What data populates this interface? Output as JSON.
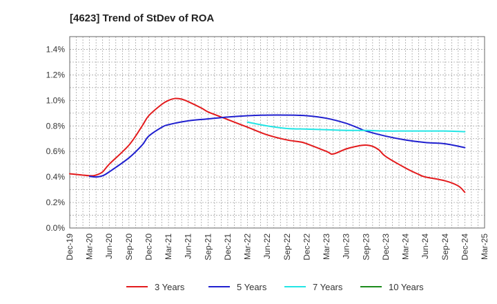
{
  "chart_data": {
    "type": "line",
    "title": "[4623]  Trend of StDev of ROA",
    "xlabel": "",
    "ylabel": "",
    "x_ticks": [
      "Dec-19",
      "Mar-20",
      "Jun-20",
      "Sep-20",
      "Dec-20",
      "Mar-21",
      "Jun-21",
      "Sep-21",
      "Dec-21",
      "Mar-22",
      "Jun-22",
      "Sep-22",
      "Dec-22",
      "Mar-23",
      "Jun-23",
      "Sep-23",
      "Dec-23",
      "Mar-24",
      "Jun-24",
      "Sep-24",
      "Dec-24",
      "Mar-25"
    ],
    "y_ticks": [
      "0.0%",
      "0.2%",
      "0.4%",
      "0.6%",
      "0.8%",
      "1.0%",
      "1.2%",
      "1.4%"
    ],
    "ylim": [
      0,
      1.5
    ],
    "y_unit": "%",
    "grid": true,
    "legend_position": "bottom",
    "series": [
      {
        "name": "3 Years",
        "color": "#e31a1c",
        "x": [
          "Dec-19",
          "Mar-20",
          "Apr-20",
          "May-20",
          "Jun-20",
          "Sep-20",
          "Nov-20",
          "Dec-20",
          "Feb-21",
          "Mar-21",
          "Apr-21",
          "May-21",
          "Jun-21",
          "Aug-21",
          "Sep-21",
          "Nov-21",
          "Dec-21",
          "Mar-22",
          "Jun-22",
          "Sep-22",
          "Nov-22",
          "Dec-22",
          "Mar-23",
          "Apr-23",
          "Jun-23",
          "Aug-23",
          "Sep-23",
          "Oct-23",
          "Nov-23",
          "Dec-23",
          "Mar-24",
          "May-24",
          "Jun-24",
          "Sep-24",
          "Nov-24",
          "Dec-24"
        ],
        "values": [
          0.425,
          0.41,
          0.415,
          0.44,
          0.5,
          0.65,
          0.8,
          0.88,
          0.97,
          1.0,
          1.015,
          1.01,
          0.99,
          0.94,
          0.91,
          0.87,
          0.85,
          0.79,
          0.73,
          0.69,
          0.675,
          0.66,
          0.6,
          0.58,
          0.62,
          0.645,
          0.65,
          0.64,
          0.61,
          0.56,
          0.47,
          0.42,
          0.4,
          0.37,
          0.33,
          0.28
        ]
      },
      {
        "name": "5 Years",
        "color": "#1f1fcf",
        "x": [
          "Mar-20",
          "Apr-20",
          "May-20",
          "Jun-20",
          "Sep-20",
          "Nov-20",
          "Dec-20",
          "Feb-21",
          "Mar-21",
          "Jun-21",
          "Sep-21",
          "Dec-21",
          "Mar-22",
          "Jun-22",
          "Sep-22",
          "Dec-22",
          "Mar-23",
          "Jun-23",
          "Aug-23",
          "Sep-23",
          "Dec-23",
          "Mar-24",
          "Jun-24",
          "Sep-24",
          "Dec-24"
        ],
        "values": [
          0.405,
          0.4,
          0.41,
          0.44,
          0.55,
          0.65,
          0.72,
          0.79,
          0.81,
          0.84,
          0.855,
          0.87,
          0.88,
          0.885,
          0.885,
          0.88,
          0.86,
          0.82,
          0.78,
          0.76,
          0.72,
          0.69,
          0.67,
          0.66,
          0.63
        ]
      },
      {
        "name": "7 Years",
        "color": "#22e5e5",
        "x": [
          "Mar-22",
          "Jun-22",
          "Sep-22",
          "Dec-22",
          "Mar-23",
          "Jun-23",
          "Sep-23",
          "Dec-23",
          "Mar-24",
          "Jun-24",
          "Sep-24",
          "Dec-24"
        ],
        "values": [
          0.83,
          0.8,
          0.78,
          0.775,
          0.77,
          0.765,
          0.765,
          0.76,
          0.76,
          0.76,
          0.76,
          0.755
        ]
      },
      {
        "name": "10 Years",
        "color": "#1a8a1a",
        "x": [],
        "values": []
      }
    ]
  }
}
